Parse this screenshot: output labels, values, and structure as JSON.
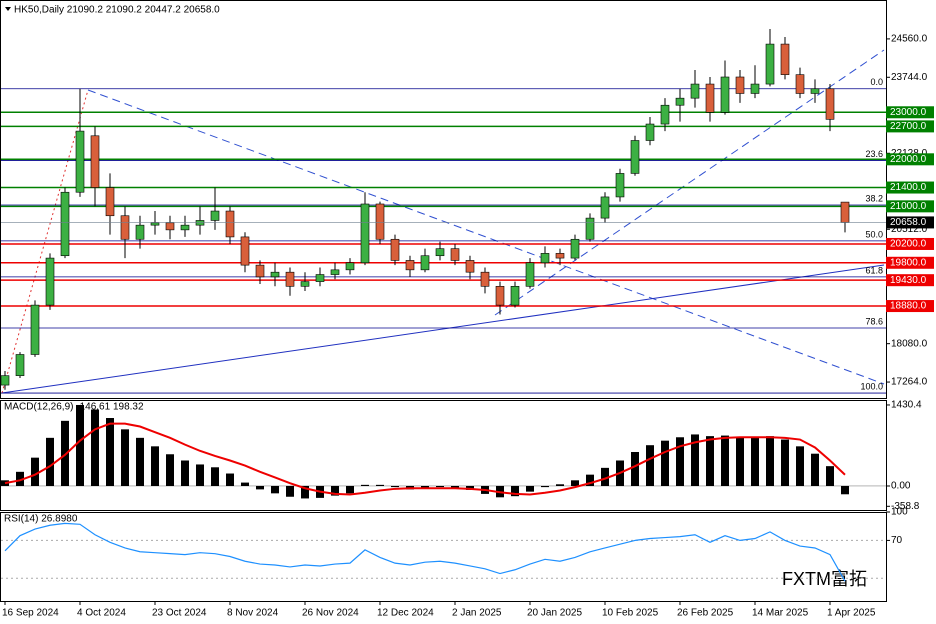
{
  "chart_data": [
    {
      "type": "candlestick",
      "title": "HK50,Daily  21090.2 21090.2 20447.2 20658.0",
      "categories": [
        "16 Sep 2024",
        null,
        null,
        null,
        null,
        "4 Oct 2024",
        null,
        null,
        null,
        null,
        "23 Oct 2024",
        null,
        null,
        null,
        null,
        "8 Nov 2024",
        null,
        null,
        null,
        null,
        "26 Nov 2024",
        null,
        null,
        null,
        null,
        "12 Dec 2024",
        null,
        null,
        null,
        null,
        "2 Jan 2025",
        null,
        null,
        null,
        null,
        "20 Jan 2025",
        null,
        null,
        null,
        null,
        "10 Feb 2025",
        null,
        null,
        null,
        null,
        "26 Feb 2025",
        null,
        null,
        null,
        null,
        "14 Mar 2025",
        null,
        null,
        null,
        null,
        "1 Apr 2025",
        null
      ],
      "open": [
        17200,
        17400,
        17850,
        18900,
        19950,
        21300,
        22500,
        21400,
        20800,
        20300,
        20600,
        20650,
        20500,
        20600,
        20700,
        20900,
        20350,
        19750,
        19500,
        19600,
        19300,
        19400,
        19550,
        19650,
        19800,
        21050,
        20300,
        19850,
        19650,
        19950,
        20100,
        19850,
        19600,
        19300,
        18900,
        19300,
        19800,
        20000,
        19900,
        20300,
        20750,
        21200,
        21700,
        22400,
        22750,
        23150,
        23300,
        23600,
        23000,
        23750,
        23400,
        23600,
        24450,
        23800,
        23400,
        23500,
        21090.2
      ],
      "high": [
        17500,
        17900,
        19000,
        20000,
        21400,
        23500,
        22700,
        21700,
        21000,
        20800,
        20900,
        20800,
        20800,
        21000,
        21400,
        21000,
        20450,
        19850,
        19800,
        19700,
        19600,
        19700,
        19800,
        19900,
        21300,
        21100,
        20400,
        19950,
        20100,
        20250,
        20200,
        19950,
        19700,
        19400,
        19400,
        19900,
        20150,
        20100,
        20400,
        20850,
        21300,
        21800,
        22500,
        22900,
        23300,
        23500,
        23900,
        23750,
        24100,
        23900,
        24000,
        24770,
        24600,
        23950,
        23700,
        23600,
        21090.2
      ],
      "low": [
        17100,
        17350,
        17800,
        18800,
        19900,
        21200,
        21000,
        20400,
        19900,
        20100,
        20400,
        20300,
        20350,
        20400,
        20500,
        20200,
        19600,
        19350,
        19300,
        19100,
        19200,
        19300,
        19450,
        19550,
        19750,
        20200,
        19750,
        19500,
        19600,
        19850,
        19750,
        19450,
        19150,
        18700,
        18850,
        19250,
        19700,
        19750,
        19850,
        20250,
        20650,
        21100,
        21650,
        22300,
        22600,
        22800,
        23100,
        22800,
        22950,
        23200,
        23300,
        23550,
        23700,
        23300,
        23200,
        22600,
        20447.2
      ],
      "close": [
        17400,
        17850,
        18900,
        19900,
        21300,
        22600,
        21400,
        20800,
        20300,
        20600,
        20650,
        20500,
        20600,
        20700,
        20900,
        20350,
        19750,
        19500,
        19600,
        19300,
        19400,
        19550,
        19650,
        19800,
        21050,
        20300,
        19850,
        19650,
        19950,
        20100,
        19850,
        19600,
        19300,
        18900,
        19300,
        19800,
        20000,
        19900,
        20300,
        20750,
        21200,
        21700,
        22400,
        22750,
        23150,
        23300,
        23600,
        23000,
        23750,
        23400,
        23600,
        24450,
        23800,
        23400,
        23500,
        22850,
        20658.0
      ],
      "up_color": "#3cb043",
      "down_color": "#d9603b",
      "ylim": [
        16925,
        25366
      ],
      "yticks": [
        {
          "value": 24560,
          "label": "24560.0"
        },
        {
          "value": 23744,
          "label": "23744.0"
        },
        {
          "value": 22128,
          "label": "22128.0"
        },
        {
          "value": 20512,
          "label": "20512.0"
        },
        {
          "value": 18080,
          "label": "18080.0"
        },
        {
          "value": 17264,
          "label": "17264.0"
        }
      ],
      "levels": [
        {
          "value": 23000,
          "label": "23000.0",
          "color": "#008000"
        },
        {
          "value": 22700,
          "label": "22700.0",
          "color": "#008000"
        },
        {
          "value": 22000,
          "label": "22000.0",
          "color": "#008000"
        },
        {
          "value": 21400,
          "label": "21400.0",
          "color": "#008000"
        },
        {
          "value": 21000,
          "label": "21000.0",
          "color": "#008000"
        },
        {
          "value": 20200,
          "label": "20200.0",
          "color": "#ee0000"
        },
        {
          "value": 19800,
          "label": "19800.0",
          "color": "#ee0000"
        },
        {
          "value": 19430,
          "label": "19430.0",
          "color": "#ee0000"
        },
        {
          "value": 18880,
          "label": "18880.0",
          "color": "#ee0000"
        }
      ],
      "price_marker": {
        "value": 20658,
        "label": "20658.0"
      },
      "fib_levels": [
        {
          "value": 23500,
          "label": "0.0"
        },
        {
          "value": 21973,
          "label": "23.6"
        },
        {
          "value": 21029,
          "label": "38.2"
        },
        {
          "value": 20265,
          "label": "50.0"
        },
        {
          "value": 19500,
          "label": "61.8"
        },
        {
          "value": 18413,
          "label": "78.6"
        },
        {
          "value": 17030,
          "label": "100.0"
        }
      ],
      "fib_color": "#00008b",
      "watermark": "FXTM富拓"
    },
    {
      "type": "macd",
      "title": "MACD(12,26,9) -146.61 198.32",
      "values": [
        100,
        250,
        500,
        850,
        1150,
        1430,
        1350,
        1200,
        1000,
        850,
        700,
        560,
        450,
        380,
        330,
        220,
        60,
        -60,
        -130,
        -190,
        -220,
        -210,
        -170,
        -130,
        20,
        20,
        -20,
        -60,
        -50,
        -20,
        -30,
        -70,
        -140,
        -200,
        -180,
        -100,
        -20,
        30,
        100,
        200,
        320,
        450,
        600,
        720,
        800,
        860,
        910,
        880,
        890,
        860,
        870,
        880,
        820,
        700,
        570,
        350,
        -146.61
      ],
      "color": "#000000",
      "signal": [
        50,
        100,
        200,
        350,
        550,
        800,
        1000,
        1100,
        1100,
        1050,
        950,
        850,
        730,
        620,
        530,
        450,
        360,
        250,
        150,
        50,
        -40,
        -100,
        -140,
        -150,
        -120,
        -80,
        -50,
        -40,
        -40,
        -40,
        -40,
        -50,
        -70,
        -110,
        -140,
        -150,
        -120,
        -80,
        -20,
        50,
        130,
        230,
        350,
        480,
        600,
        700,
        770,
        820,
        850,
        860,
        860,
        860,
        850,
        820,
        680,
        450,
        198.32
      ],
      "signal_color": "#ee0000",
      "ylim": [
        -424,
        1518
      ],
      "yticks": [
        {
          "value": 1430.4,
          "label": "1430.4"
        },
        {
          "value": 0,
          "label": "0.00"
        },
        {
          "value": -358.8,
          "label": "-358.8"
        }
      ]
    },
    {
      "type": "line",
      "title": "RSI(14) 26.8980",
      "values": [
        59,
        75,
        82,
        86,
        88,
        87,
        76,
        68,
        62,
        58,
        57,
        56,
        55,
        57,
        56,
        53,
        48,
        45,
        44,
        42,
        44,
        43,
        45,
        46,
        60,
        52,
        46,
        44,
        47,
        48,
        46,
        43,
        40,
        35,
        39,
        45,
        50,
        48,
        52,
        58,
        62,
        66,
        70,
        72,
        73,
        74,
        76,
        68,
        75,
        70,
        72,
        79,
        70,
        64,
        62,
        55,
        26.898
      ],
      "color": "#1e90ff",
      "ylim": [
        6,
        100
      ],
      "yticks": [
        100,
        70
      ],
      "levels": [
        70,
        30
      ]
    }
  ]
}
